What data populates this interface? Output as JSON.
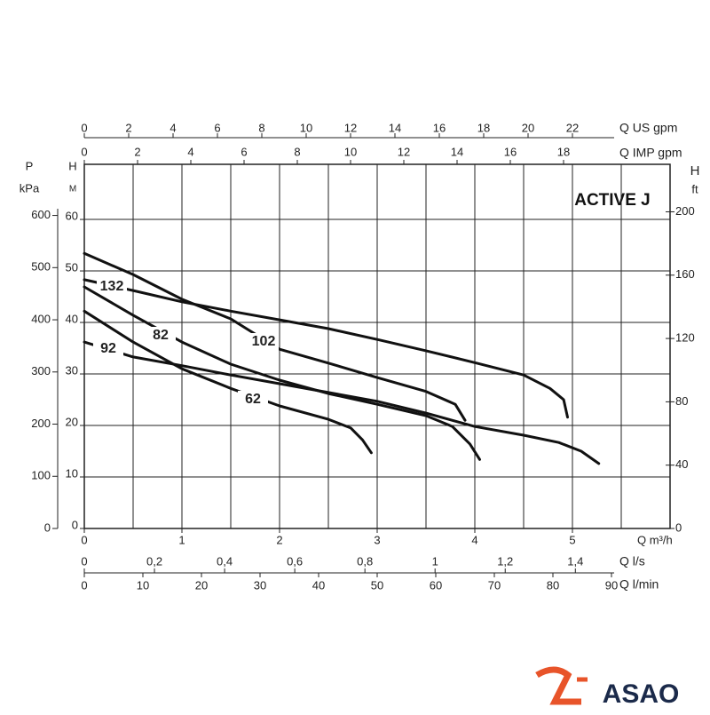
{
  "chart_data": {
    "type": "line",
    "title": "ACTIVE J",
    "x_label": "Q m³/h",
    "xlim": [
      0,
      6
    ],
    "xticks": [
      0,
      1,
      2,
      3,
      4,
      5
    ],
    "x_grid": [
      0.5,
      1,
      1.5,
      2,
      2.5,
      3,
      3.5,
      4,
      4.5,
      5,
      5.5
    ],
    "y_label": [
      "H",
      "M"
    ],
    "ylim": [
      0,
      70.7
    ],
    "yticks": [
      0,
      10,
      20,
      30,
      40,
      50,
      60
    ],
    "grid": true,
    "line_color": "#111111",
    "pressure_axis": {
      "label": [
        "P",
        "kPa"
      ],
      "ylim": [
        0,
        698
      ],
      "yticks": [
        0,
        100,
        200,
        300,
        400,
        500,
        600
      ]
    },
    "feet_axis": {
      "label": [
        "H",
        "ft"
      ],
      "ylim": [
        0,
        230
      ],
      "yticks": [
        0,
        40,
        80,
        120,
        160,
        200
      ]
    },
    "top_axes": [
      {
        "label": "Q US gpm",
        "xlim": [
          0,
          26.4
        ],
        "xticks": [
          0,
          2,
          4,
          6,
          8,
          10,
          12,
          14,
          16,
          18,
          20,
          22
        ]
      },
      {
        "label": "Q IMP gpm",
        "xlim": [
          0,
          22
        ],
        "xticks": [
          0,
          2,
          4,
          6,
          8,
          10,
          12,
          14,
          16,
          18
        ]
      }
    ],
    "bottom_axes": [
      {
        "label": "Q l/s",
        "xlim": [
          0,
          1.67
        ],
        "xticks": [
          0,
          {
            "value": 0.2,
            "label": "0,2"
          },
          {
            "value": 0.4,
            "label": "0,4"
          },
          {
            "value": 0.6,
            "label": "0,6"
          },
          {
            "value": 0.8,
            "label": "0,8"
          },
          1,
          {
            "value": 1.2,
            "label": "1,2"
          },
          {
            "value": 1.4,
            "label": "1,4"
          }
        ]
      },
      {
        "label": "Q l/min",
        "xlim": [
          0,
          100
        ],
        "xticks": [
          0,
          10,
          20,
          30,
          40,
          50,
          60,
          70,
          80,
          90
        ]
      }
    ],
    "series": [
      {
        "name": "132",
        "x": [
          0,
          0.5,
          1,
          1.5,
          2,
          2.5,
          3,
          3.5,
          4,
          4.5,
          4.77,
          4.91,
          4.95
        ],
        "values": [
          48.3,
          46.2,
          44.0,
          42.2,
          40.5,
          38.8,
          36.7,
          34.5,
          32.2,
          29.8,
          27.2,
          25.0,
          21.6
        ]
      },
      {
        "name": "102",
        "x": [
          0,
          0.5,
          1,
          1.5,
          2,
          2.5,
          3,
          3.5,
          3.8,
          3.9
        ],
        "values": [
          53.4,
          49.3,
          44.5,
          40.7,
          34.8,
          32.1,
          29.3,
          26.6,
          24.1,
          21.0
        ]
      },
      {
        "name": "82",
        "x": [
          0,
          0.5,
          1,
          1.5,
          2,
          2.5,
          3,
          3.5,
          3.77,
          3.95,
          4.05
        ],
        "values": [
          46.9,
          41.4,
          36.2,
          31.9,
          28.8,
          26.2,
          24.1,
          21.9,
          19.8,
          16.4,
          13.4
        ]
      },
      {
        "name": "92",
        "x": [
          0,
          0.5,
          1,
          1.5,
          2,
          2.5,
          3,
          3.5,
          4,
          4.5,
          4.86,
          5.09,
          5.27
        ],
        "values": [
          36.2,
          33.3,
          31.6,
          29.8,
          28.1,
          26.4,
          24.7,
          22.4,
          19.8,
          18.1,
          16.7,
          15.0,
          12.6
        ]
      },
      {
        "name": "62",
        "x": [
          0,
          0.5,
          1,
          1.5,
          2,
          2.5,
          2.73,
          2.85,
          2.94
        ],
        "values": [
          42.2,
          36.2,
          31.0,
          27.2,
          23.8,
          21.2,
          19.5,
          17.2,
          14.7
        ]
      }
    ],
    "logo": "ASAO"
  }
}
